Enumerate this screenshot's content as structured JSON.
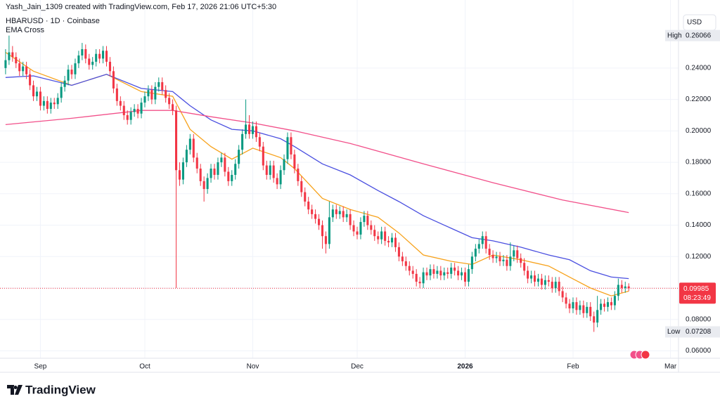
{
  "header": {
    "credit": "Yash_Jain_1309 created with TradingView.com, Feb 17, 2026 21:06 UTC+5:30",
    "symbol": "HBARUSD · 1D · Coinbase",
    "indicator": "EMA Cross",
    "currency": "USD"
  },
  "footer": {
    "logo": "TradingView"
  },
  "chart_data": {
    "type": "candlestick",
    "up_color": "#089981",
    "down_color": "#f23645",
    "grid": true,
    "xlim": [
      -1.6,
      193.3
    ],
    "ylim": [
      0.0553,
      0.2833
    ],
    "xticks": [
      {
        "value": 10,
        "label": "Sep"
      },
      {
        "value": 40,
        "label": "Oct"
      },
      {
        "value": 71,
        "label": "Nov"
      },
      {
        "value": 101,
        "label": "Dec"
      },
      {
        "value": 132,
        "label": "2026"
      },
      {
        "value": 163,
        "label": "Feb"
      },
      {
        "value": 191,
        "label": "Mar"
      }
    ],
    "yticks": [
      {
        "value": 0.06,
        "label": "0.06000"
      },
      {
        "value": 0.08,
        "label": "0.08000"
      },
      {
        "value": 0.1,
        "label": "0.10000"
      },
      {
        "value": 0.12,
        "label": "0.12000"
      },
      {
        "value": 0.14,
        "label": "0.14000"
      },
      {
        "value": 0.16,
        "label": "0.16000"
      },
      {
        "value": 0.18,
        "label": "0.18000"
      },
      {
        "value": 0.2,
        "label": "0.20000"
      },
      {
        "value": 0.22,
        "label": "0.22000"
      },
      {
        "value": 0.24,
        "label": "0.24000"
      }
    ],
    "high": {
      "label": "High",
      "value": 0.26066
    },
    "low": {
      "label": "Low",
      "value": 0.07208
    },
    "last": {
      "value": 0.09985,
      "countdown": "08:23:49",
      "color": "#f23645"
    },
    "lines": [
      {
        "color": "#f7a21b",
        "x": [
          0,
          8,
          19,
          29,
          39,
          48,
          53,
          59,
          65,
          71,
          79,
          83,
          91,
          99,
          107,
          113,
          120,
          128,
          134,
          140,
          148,
          156,
          162,
          168,
          174,
          179
        ],
        "values": [
          0.25,
          0.238,
          0.229,
          0.236,
          0.225,
          0.222,
          0.201,
          0.19,
          0.182,
          0.189,
          0.183,
          0.176,
          0.157,
          0.15,
          0.145,
          0.135,
          0.121,
          0.117,
          0.115,
          0.121,
          0.118,
          0.114,
          0.107,
          0.1,
          0.095,
          0.098
        ]
      },
      {
        "color": "#4a4fe0",
        "x": [
          0,
          8,
          19,
          29,
          39,
          48,
          53,
          59,
          65,
          71,
          79,
          83,
          91,
          99,
          107,
          113,
          120,
          128,
          134,
          140,
          148,
          156,
          162,
          168,
          174,
          179
        ],
        "values": [
          0.234,
          0.235,
          0.229,
          0.236,
          0.227,
          0.225,
          0.216,
          0.207,
          0.201,
          0.2,
          0.195,
          0.19,
          0.179,
          0.172,
          0.162,
          0.155,
          0.146,
          0.138,
          0.132,
          0.13,
          0.126,
          0.121,
          0.118,
          0.111,
          0.107,
          0.106
        ]
      },
      {
        "color": "#f2508a",
        "x": [
          0,
          19,
          39,
          48,
          59,
          71,
          83,
          99,
          120,
          140,
          160,
          179
        ],
        "values": [
          0.204,
          0.208,
          0.213,
          0.213,
          0.209,
          0.205,
          0.2,
          0.192,
          0.179,
          0.167,
          0.156,
          0.148
        ]
      }
    ],
    "ohlc": [
      [
        0.24,
        0.252,
        0.236,
        0.245
      ],
      [
        0.245,
        0.26066,
        0.242,
        0.25
      ],
      [
        0.25,
        0.254,
        0.244,
        0.247
      ],
      [
        0.247,
        0.25,
        0.24,
        0.243
      ],
      [
        0.243,
        0.246,
        0.235,
        0.238
      ],
      [
        0.238,
        0.244,
        0.235,
        0.241
      ],
      [
        0.241,
        0.244,
        0.233,
        0.236
      ],
      [
        0.236,
        0.239,
        0.226,
        0.229
      ],
      [
        0.229,
        0.232,
        0.219,
        0.222
      ],
      [
        0.222,
        0.228,
        0.219,
        0.225
      ],
      [
        0.225,
        0.228,
        0.213,
        0.216
      ],
      [
        0.216,
        0.222,
        0.213,
        0.219
      ],
      [
        0.219,
        0.222,
        0.211,
        0.214
      ],
      [
        0.214,
        0.221,
        0.211,
        0.218
      ],
      [
        0.218,
        0.221,
        0.214,
        0.217
      ],
      [
        0.217,
        0.224,
        0.214,
        0.221
      ],
      [
        0.221,
        0.231,
        0.218,
        0.228
      ],
      [
        0.228,
        0.235,
        0.225,
        0.232
      ],
      [
        0.232,
        0.242,
        0.229,
        0.239
      ],
      [
        0.239,
        0.242,
        0.233,
        0.236
      ],
      [
        0.236,
        0.246,
        0.233,
        0.243
      ],
      [
        0.243,
        0.251,
        0.24,
        0.248
      ],
      [
        0.248,
        0.256,
        0.245,
        0.252
      ],
      [
        0.252,
        0.255,
        0.243,
        0.246
      ],
      [
        0.246,
        0.249,
        0.239,
        0.242
      ],
      [
        0.242,
        0.247,
        0.239,
        0.244
      ],
      [
        0.244,
        0.252,
        0.241,
        0.249
      ],
      [
        0.249,
        0.252,
        0.243,
        0.246
      ],
      [
        0.246,
        0.254,
        0.243,
        0.251
      ],
      [
        0.251,
        0.254,
        0.241,
        0.244
      ],
      [
        0.244,
        0.247,
        0.235,
        0.238
      ],
      [
        0.238,
        0.241,
        0.224,
        0.227
      ],
      [
        0.227,
        0.23,
        0.216,
        0.219
      ],
      [
        0.219,
        0.222,
        0.213,
        0.216
      ],
      [
        0.216,
        0.219,
        0.207,
        0.21
      ],
      [
        0.21,
        0.213,
        0.204,
        0.207
      ],
      [
        0.207,
        0.215,
        0.204,
        0.212
      ],
      [
        0.212,
        0.217,
        0.209,
        0.214
      ],
      [
        0.214,
        0.217,
        0.208,
        0.211
      ],
      [
        0.211,
        0.221,
        0.208,
        0.218
      ],
      [
        0.218,
        0.225,
        0.215,
        0.222
      ],
      [
        0.222,
        0.229,
        0.219,
        0.226
      ],
      [
        0.226,
        0.229,
        0.217,
        0.22
      ],
      [
        0.22,
        0.231,
        0.217,
        0.228
      ],
      [
        0.228,
        0.234,
        0.225,
        0.231
      ],
      [
        0.231,
        0.234,
        0.223,
        0.226
      ],
      [
        0.226,
        0.229,
        0.218,
        0.221
      ],
      [
        0.221,
        0.224,
        0.214,
        0.217
      ],
      [
        0.217,
        0.22,
        0.21,
        0.213
      ],
      [
        0.213,
        0.216,
        0.1,
        0.175
      ],
      [
        0.175,
        0.18,
        0.165,
        0.169
      ],
      [
        0.169,
        0.183,
        0.166,
        0.18
      ],
      [
        0.18,
        0.191,
        0.177,
        0.188
      ],
      [
        0.188,
        0.198,
        0.185,
        0.195
      ],
      [
        0.195,
        0.198,
        0.18,
        0.183
      ],
      [
        0.183,
        0.186,
        0.173,
        0.176
      ],
      [
        0.176,
        0.179,
        0.165,
        0.168
      ],
      [
        0.168,
        0.171,
        0.155,
        0.163
      ],
      [
        0.163,
        0.173,
        0.16,
        0.17
      ],
      [
        0.17,
        0.179,
        0.167,
        0.176
      ],
      [
        0.176,
        0.179,
        0.169,
        0.172
      ],
      [
        0.172,
        0.183,
        0.169,
        0.18
      ],
      [
        0.18,
        0.186,
        0.177,
        0.183
      ],
      [
        0.183,
        0.186,
        0.171,
        0.174
      ],
      [
        0.174,
        0.177,
        0.165,
        0.168
      ],
      [
        0.168,
        0.175,
        0.165,
        0.172
      ],
      [
        0.172,
        0.182,
        0.169,
        0.179
      ],
      [
        0.179,
        0.191,
        0.176,
        0.188
      ],
      [
        0.188,
        0.201,
        0.185,
        0.198
      ],
      [
        0.198,
        0.22,
        0.195,
        0.204
      ],
      [
        0.204,
        0.21,
        0.195,
        0.198
      ],
      [
        0.198,
        0.206,
        0.195,
        0.203
      ],
      [
        0.203,
        0.206,
        0.193,
        0.196
      ],
      [
        0.196,
        0.199,
        0.187,
        0.19
      ],
      [
        0.19,
        0.193,
        0.175,
        0.178
      ],
      [
        0.178,
        0.181,
        0.169,
        0.172
      ],
      [
        0.172,
        0.181,
        0.169,
        0.178
      ],
      [
        0.178,
        0.181,
        0.167,
        0.17
      ],
      [
        0.17,
        0.173,
        0.163,
        0.166
      ],
      [
        0.166,
        0.178,
        0.163,
        0.175
      ],
      [
        0.175,
        0.185,
        0.172,
        0.182
      ],
      [
        0.182,
        0.199,
        0.179,
        0.196
      ],
      [
        0.196,
        0.199,
        0.182,
        0.185
      ],
      [
        0.185,
        0.188,
        0.173,
        0.176
      ],
      [
        0.176,
        0.179,
        0.165,
        0.168
      ],
      [
        0.168,
        0.171,
        0.158,
        0.161
      ],
      [
        0.161,
        0.164,
        0.152,
        0.155
      ],
      [
        0.155,
        0.158,
        0.147,
        0.15
      ],
      [
        0.15,
        0.153,
        0.144,
        0.147
      ],
      [
        0.147,
        0.15,
        0.141,
        0.144
      ],
      [
        0.144,
        0.147,
        0.137,
        0.14
      ],
      [
        0.14,
        0.143,
        0.125,
        0.133
      ],
      [
        0.133,
        0.136,
        0.122,
        0.128
      ],
      [
        0.128,
        0.155,
        0.125,
        0.145
      ],
      [
        0.145,
        0.153,
        0.142,
        0.15
      ],
      [
        0.15,
        0.153,
        0.144,
        0.147
      ],
      [
        0.147,
        0.152,
        0.144,
        0.149
      ],
      [
        0.149,
        0.152,
        0.142,
        0.145
      ],
      [
        0.145,
        0.15,
        0.142,
        0.147
      ],
      [
        0.147,
        0.15,
        0.137,
        0.14
      ],
      [
        0.14,
        0.143,
        0.133,
        0.136
      ],
      [
        0.136,
        0.139,
        0.131,
        0.134
      ],
      [
        0.134,
        0.145,
        0.131,
        0.142
      ],
      [
        0.142,
        0.149,
        0.139,
        0.146
      ],
      [
        0.146,
        0.149,
        0.137,
        0.14
      ],
      [
        0.14,
        0.143,
        0.134,
        0.137
      ],
      [
        0.137,
        0.14,
        0.13,
        0.133
      ],
      [
        0.133,
        0.136,
        0.128,
        0.131
      ],
      [
        0.131,
        0.139,
        0.128,
        0.136
      ],
      [
        0.136,
        0.139,
        0.127,
        0.13
      ],
      [
        0.13,
        0.133,
        0.126,
        0.129
      ],
      [
        0.129,
        0.135,
        0.126,
        0.132
      ],
      [
        0.132,
        0.135,
        0.123,
        0.126
      ],
      [
        0.126,
        0.129,
        0.117,
        0.12
      ],
      [
        0.12,
        0.123,
        0.114,
        0.117
      ],
      [
        0.117,
        0.12,
        0.111,
        0.114
      ],
      [
        0.114,
        0.117,
        0.108,
        0.111
      ],
      [
        0.111,
        0.114,
        0.106,
        0.109
      ],
      [
        0.109,
        0.112,
        0.101,
        0.104
      ],
      [
        0.104,
        0.107,
        0.1,
        0.103
      ],
      [
        0.103,
        0.113,
        0.1,
        0.11
      ],
      [
        0.11,
        0.113,
        0.105,
        0.108
      ],
      [
        0.108,
        0.115,
        0.105,
        0.112
      ],
      [
        0.112,
        0.115,
        0.106,
        0.109
      ],
      [
        0.109,
        0.114,
        0.106,
        0.111
      ],
      [
        0.111,
        0.114,
        0.105,
        0.108
      ],
      [
        0.108,
        0.113,
        0.105,
        0.11
      ],
      [
        0.11,
        0.113,
        0.106,
        0.109
      ],
      [
        0.109,
        0.116,
        0.106,
        0.113
      ],
      [
        0.113,
        0.116,
        0.108,
        0.111
      ],
      [
        0.111,
        0.114,
        0.105,
        0.108
      ],
      [
        0.108,
        0.113,
        0.105,
        0.11
      ],
      [
        0.11,
        0.113,
        0.101,
        0.104
      ],
      [
        0.104,
        0.115,
        0.101,
        0.112
      ],
      [
        0.112,
        0.123,
        0.109,
        0.12
      ],
      [
        0.12,
        0.128,
        0.117,
        0.125
      ],
      [
        0.125,
        0.131,
        0.122,
        0.128
      ],
      [
        0.128,
        0.136,
        0.125,
        0.133
      ],
      [
        0.133,
        0.136,
        0.122,
        0.125
      ],
      [
        0.125,
        0.128,
        0.118,
        0.121
      ],
      [
        0.121,
        0.124,
        0.116,
        0.119
      ],
      [
        0.119,
        0.123,
        0.116,
        0.12
      ],
      [
        0.12,
        0.123,
        0.114,
        0.117
      ],
      [
        0.117,
        0.121,
        0.114,
        0.118
      ],
      [
        0.118,
        0.121,
        0.111,
        0.114
      ],
      [
        0.114,
        0.129,
        0.111,
        0.12
      ],
      [
        0.12,
        0.127,
        0.117,
        0.124
      ],
      [
        0.124,
        0.127,
        0.116,
        0.119
      ],
      [
        0.119,
        0.122,
        0.113,
        0.116
      ],
      [
        0.116,
        0.119,
        0.108,
        0.111
      ],
      [
        0.111,
        0.114,
        0.103,
        0.106
      ],
      [
        0.106,
        0.111,
        0.103,
        0.108
      ],
      [
        0.108,
        0.111,
        0.101,
        0.104
      ],
      [
        0.104,
        0.109,
        0.101,
        0.106
      ],
      [
        0.106,
        0.109,
        0.099,
        0.102
      ],
      [
        0.102,
        0.108,
        0.099,
        0.105
      ],
      [
        0.105,
        0.108,
        0.101,
        0.104
      ],
      [
        0.104,
        0.107,
        0.097,
        0.1
      ],
      [
        0.1,
        0.107,
        0.097,
        0.104
      ],
      [
        0.104,
        0.107,
        0.095,
        0.098
      ],
      [
        0.098,
        0.101,
        0.091,
        0.094
      ],
      [
        0.094,
        0.097,
        0.087,
        0.09
      ],
      [
        0.09,
        0.093,
        0.084,
        0.087
      ],
      [
        0.087,
        0.094,
        0.084,
        0.091
      ],
      [
        0.091,
        0.094,
        0.083,
        0.086
      ],
      [
        0.086,
        0.092,
        0.083,
        0.089
      ],
      [
        0.089,
        0.092,
        0.081,
        0.084
      ],
      [
        0.084,
        0.091,
        0.081,
        0.088
      ],
      [
        0.088,
        0.091,
        0.079,
        0.082
      ],
      [
        0.082,
        0.085,
        0.07208,
        0.078
      ],
      [
        0.078,
        0.095,
        0.075,
        0.086
      ],
      [
        0.086,
        0.093,
        0.083,
        0.09
      ],
      [
        0.09,
        0.093,
        0.085,
        0.088
      ],
      [
        0.088,
        0.094,
        0.085,
        0.091
      ],
      [
        0.091,
        0.094,
        0.086,
        0.089
      ],
      [
        0.089,
        0.098,
        0.086,
        0.095
      ],
      [
        0.095,
        0.106,
        0.092,
        0.102
      ],
      [
        0.102,
        0.105,
        0.097,
        0.1
      ],
      [
        0.1,
        0.104,
        0.097,
        0.101
      ],
      [
        0.101,
        0.103,
        0.098,
        0.09985
      ]
    ]
  }
}
